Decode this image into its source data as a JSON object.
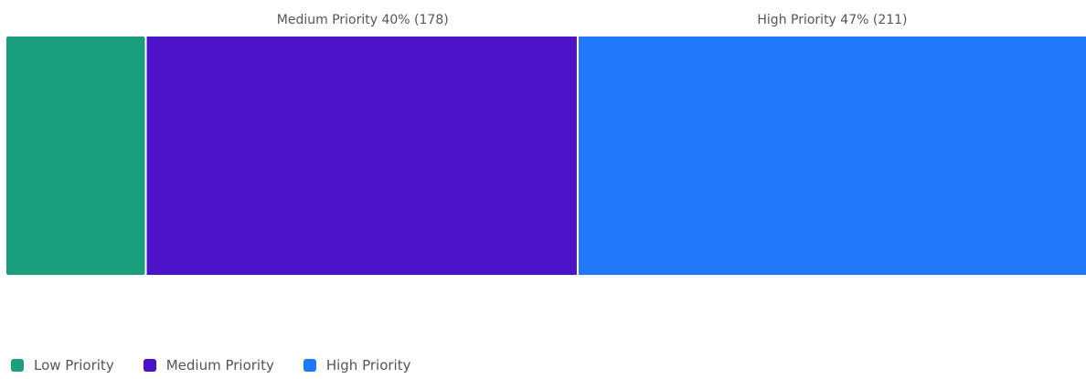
{
  "chart_data": {
    "type": "bar",
    "orientation": "horizontal-stacked-100",
    "title": "",
    "xlabel": "",
    "ylabel": "",
    "grid": false,
    "legend_position": "bottom-left",
    "series": [
      {
        "name": "Low Priority",
        "value": 58,
        "percent": 13,
        "color": "#1b9e7e",
        "label": ""
      },
      {
        "name": "Medium Priority",
        "value": 178,
        "percent": 40,
        "color": "#4b12c8",
        "label": "Medium Priority 40% (178)"
      },
      {
        "name": "High Priority",
        "value": 211,
        "percent": 47,
        "color": "#2178f8",
        "label": "High Priority 47% (211)"
      }
    ]
  },
  "legend": {
    "items": [
      {
        "label": "Low Priority",
        "color": "#1b9e7e"
      },
      {
        "label": "Medium Priority",
        "color": "#4b12c8"
      },
      {
        "label": "High Priority",
        "color": "#2178f8"
      }
    ]
  }
}
